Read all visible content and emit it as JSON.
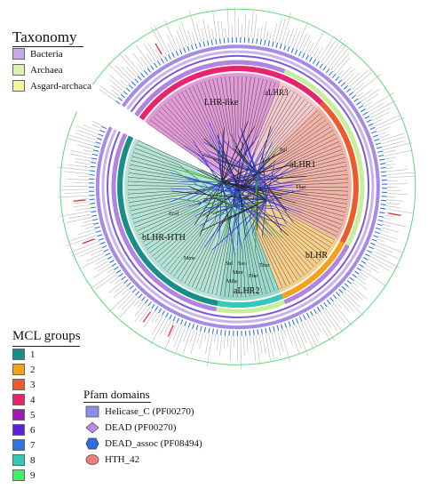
{
  "taxonomy": {
    "title": "Taxonomy",
    "items": [
      {
        "label": "Bacteria",
        "color": "#c9a8ec"
      },
      {
        "label": "Archaea",
        "color": "#d9f3b0"
      },
      {
        "label": "Asgard-archaca",
        "color": "#f5f59a"
      }
    ]
  },
  "mcl": {
    "title": "MCL groups",
    "items": [
      {
        "label": "1",
        "color": "#178e86"
      },
      {
        "label": "2",
        "color": "#f4a21a"
      },
      {
        "label": "3",
        "color": "#ef5a2a"
      },
      {
        "label": "4",
        "color": "#e8246d"
      },
      {
        "label": "5",
        "color": "#a416b9"
      },
      {
        "label": "6",
        "color": "#5a22d9"
      },
      {
        "label": "7",
        "color": "#2f74e4"
      },
      {
        "label": "8",
        "color": "#35c7b8"
      },
      {
        "label": "9",
        "color": "#3cf06a"
      }
    ]
  },
  "pfam": {
    "title": "Pfam domains",
    "items": [
      {
        "label": "Helicase_C (PF00270)",
        "shape": "square",
        "color": "#8b8fe8"
      },
      {
        "label": "DEAD (PF00270)",
        "shape": "diamond",
        "color": "#b98ae6"
      },
      {
        "label": "DEAD_assoc (PF08494)",
        "shape": "hexagon",
        "color": "#2f6de0"
      },
      {
        "label": "HTH_42",
        "shape": "ellipse",
        "color": "#f07b7b"
      }
    ]
  },
  "clades": [
    {
      "name": "LHR-like",
      "color": "#e29bd6",
      "ring": "#e8246d",
      "icon": "clade-wedge"
    },
    {
      "name": "aLHR3",
      "color": "#f4c9d0",
      "ring": "#e8246d",
      "icon": "clade-wedge"
    },
    {
      "name": "aLHR1",
      "color": "#f2b4a8",
      "ring": "#ef5a2a",
      "icon": "clade-wedge"
    },
    {
      "name": "bLHR",
      "color": "#f7cf8a",
      "ring": "#f4a21a",
      "icon": "clade-wedge"
    },
    {
      "name": "aLHR2",
      "color": "#9adbcb",
      "ring": "#35c7b8",
      "icon": "clade-wedge"
    },
    {
      "name": "bLHR-HTH",
      "color": "#b5e3d6",
      "ring": "#178e86",
      "icon": "clade-wedge"
    }
  ],
  "taxa_labels": [
    "Sul",
    "Thar",
    "Ecol",
    "Mme",
    "Sul",
    "Sso",
    "Mmr",
    "Pfur",
    "Mthe",
    "Tbar"
  ]
}
